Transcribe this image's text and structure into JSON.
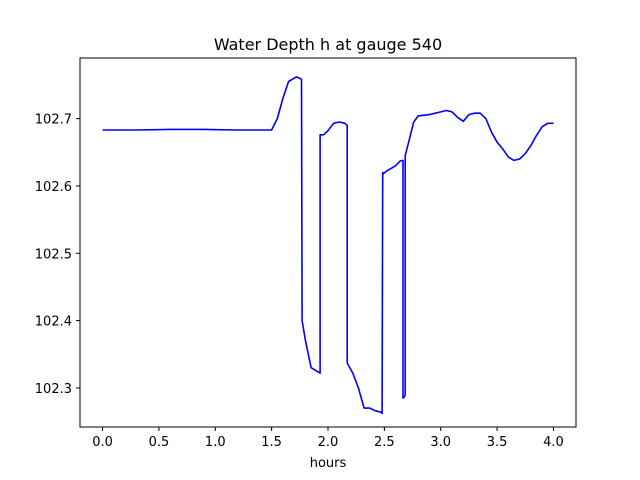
{
  "chart_data": {
    "type": "line",
    "title": "Water Depth h at gauge 540",
    "xlabel": "hours",
    "ylabel": "",
    "xlim": [
      -0.2,
      4.2
    ],
    "ylim": [
      102.242,
      102.79
    ],
    "x_ticks": [
      0.0,
      0.5,
      1.0,
      1.5,
      2.0,
      2.5,
      3.0,
      3.5,
      4.0
    ],
    "x_tick_labels": [
      "0.0",
      "0.5",
      "1.0",
      "1.5",
      "2.0",
      "2.5",
      "3.0",
      "3.5",
      "4.0"
    ],
    "y_ticks": [
      102.3,
      102.4,
      102.5,
      102.6,
      102.7
    ],
    "y_tick_labels": [
      "102.3",
      "102.4",
      "102.5",
      "102.6",
      "102.7"
    ],
    "grid": false,
    "legend": "none",
    "series": [
      {
        "color": "#0000ff",
        "x": [
          0.0,
          0.3,
          0.6,
          0.9,
          1.2,
          1.5,
          1.55,
          1.6,
          1.65,
          1.7,
          1.72,
          1.75,
          1.765,
          1.77,
          1.8,
          1.85,
          1.9,
          1.93,
          1.93,
          1.96,
          2.0,
          2.05,
          2.1,
          2.15,
          2.17,
          2.17,
          2.22,
          2.27,
          2.32,
          2.37,
          2.42,
          2.47,
          2.48,
          2.485,
          2.49,
          2.52,
          2.56,
          2.6,
          2.64,
          2.665,
          2.665,
          2.67,
          2.68,
          2.685,
          2.685,
          2.72,
          2.76,
          2.8,
          2.85,
          2.9,
          2.95,
          3.0,
          3.05,
          3.1,
          3.15,
          3.2,
          3.25,
          3.3,
          3.35,
          3.4,
          3.45,
          3.5,
          3.55,
          3.6,
          3.65,
          3.7,
          3.75,
          3.8,
          3.85,
          3.9,
          3.95,
          4.0
        ],
        "y": [
          102.683,
          102.683,
          102.684,
          102.684,
          102.683,
          102.683,
          102.7,
          102.73,
          102.755,
          102.76,
          102.762,
          102.76,
          102.758,
          102.4,
          102.37,
          102.33,
          102.325,
          102.322,
          102.676,
          102.676,
          102.682,
          102.693,
          102.695,
          102.693,
          102.69,
          102.337,
          102.322,
          102.3,
          102.27,
          102.27,
          102.266,
          102.264,
          102.262,
          102.62,
          102.618,
          102.622,
          102.626,
          102.63,
          102.637,
          102.638,
          102.285,
          102.285,
          102.288,
          102.29,
          102.645,
          102.668,
          102.695,
          102.704,
          102.705,
          102.706,
          102.708,
          102.71,
          102.712,
          102.71,
          102.702,
          102.696,
          102.706,
          102.708,
          102.708,
          102.7,
          102.68,
          102.665,
          102.655,
          102.643,
          102.638,
          102.64,
          102.648,
          102.66,
          102.675,
          102.688,
          102.693,
          102.693
        ]
      }
    ]
  }
}
